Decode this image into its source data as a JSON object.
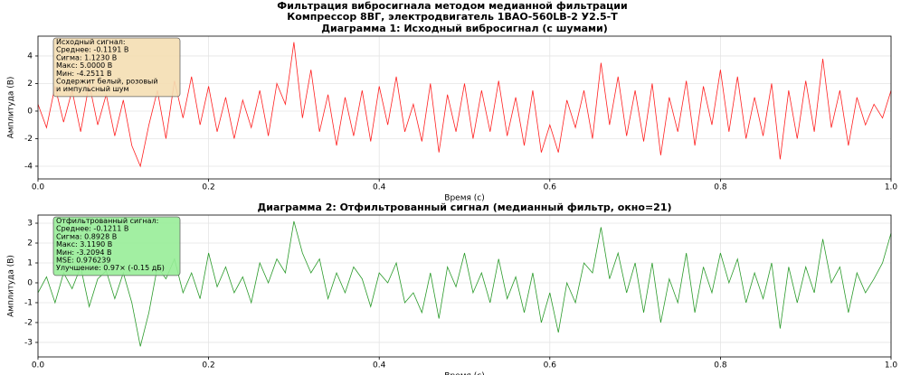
{
  "suptitle": [
    "Фильтрация вибросигнала методом медианной фильтрации",
    "Компрессор 8ВГ, электродвигатель 1ВАО-560LВ-2 У2.5-Т"
  ],
  "chart_data": [
    {
      "type": "line",
      "title": "Диаграмма 1: Исходный вибросигнал (с шумами)",
      "xlabel": "Время (с)",
      "ylabel": "Амплитуда (В)",
      "color": "#ff2020",
      "annotation_bg": "#f5deb3",
      "annotation": [
        "Исходный сигнал:",
        "Среднее: -0.1191 В",
        "Сигма: 1.1230 В",
        "Макс: 5.0000 В",
        "Мин: -4.2511 В",
        "Содержит белый, розовый",
        "и импульсный шум"
      ],
      "xlim": [
        0,
        1
      ],
      "ylim": [
        -4.92,
        5.44
      ],
      "grid": true,
      "xticks": [
        {
          "value": 0,
          "label": "0.0"
        },
        0.2,
        0.4,
        0.6,
        0.8,
        {
          "value": 1,
          "label": "1.0"
        }
      ],
      "yticks": [
        -4,
        -2,
        0,
        2,
        4
      ],
      "x": [
        0,
        0.01,
        0.02,
        0.03,
        0.04,
        0.05,
        0.06,
        0.07,
        0.08,
        0.09,
        0.1,
        0.11,
        0.12,
        0.13,
        0.14,
        0.15,
        0.16,
        0.17,
        0.18,
        0.19,
        0.2,
        0.21,
        0.22,
        0.23,
        0.24,
        0.25,
        0.26,
        0.27,
        0.28,
        0.29,
        0.3,
        0.31,
        0.32,
        0.33,
        0.34,
        0.35,
        0.36,
        0.37,
        0.38,
        0.39,
        0.4,
        0.41,
        0.42,
        0.43,
        0.44,
        0.45,
        0.46,
        0.47,
        0.48,
        0.49,
        0.5,
        0.51,
        0.52,
        0.53,
        0.54,
        0.55,
        0.56,
        0.57,
        0.58,
        0.59,
        0.6,
        0.61,
        0.62,
        0.63,
        0.64,
        0.65,
        0.66,
        0.67,
        0.68,
        0.69,
        0.7,
        0.71,
        0.72,
        0.73,
        0.74,
        0.75,
        0.76,
        0.77,
        0.78,
        0.79,
        0.8,
        0.81,
        0.82,
        0.83,
        0.84,
        0.85,
        0.86,
        0.87,
        0.88,
        0.89,
        0.9,
        0.91,
        0.92,
        0.93,
        0.94,
        0.95,
        0.96,
        0.97,
        0.98,
        0.99,
        1
      ],
      "values": [
        0.5,
        -1.2,
        1.8,
        -0.8,
        1.5,
        -1.5,
        2.0,
        -1.0,
        1.2,
        -1.8,
        0.8,
        -2.5,
        -4.0,
        -1.0,
        1.5,
        -2.0,
        2.2,
        -0.5,
        2.5,
        -1.0,
        1.8,
        -1.5,
        1.0,
        -2.0,
        0.8,
        -1.2,
        1.5,
        -1.8,
        2.0,
        0.5,
        5.0,
        -0.5,
        3.0,
        -1.5,
        1.2,
        -2.5,
        1.0,
        -1.8,
        1.5,
        -2.2,
        1.8,
        -1.0,
        2.5,
        -1.5,
        0.5,
        -2.2,
        2.0,
        -3.0,
        1.2,
        -1.5,
        2.0,
        -2.0,
        1.5,
        -1.5,
        2.2,
        -1.8,
        1.0,
        -2.5,
        1.5,
        -3.0,
        -1.0,
        -3.0,
        0.8,
        -1.2,
        1.5,
        -2.0,
        3.5,
        -1.0,
        2.5,
        -1.8,
        1.5,
        -2.2,
        2.0,
        -3.2,
        1.0,
        -1.5,
        2.2,
        -2.5,
        1.8,
        -1.0,
        3.0,
        -1.5,
        2.5,
        -2.0,
        1.0,
        -1.8,
        2.0,
        -3.5,
        1.5,
        -2.0,
        2.2,
        -1.5,
        3.8,
        -1.2,
        1.5,
        -2.5,
        1.0,
        -1.0,
        0.5,
        -0.5,
        1.5
      ]
    },
    {
      "type": "line",
      "title": "Диаграмма 2: Отфильтрованный сигнал (медианный фильтр, окно=21)",
      "xlabel": "Время (с)",
      "ylabel": "Амплитуда (В)",
      "color": "#2a9a2a",
      "annotation_bg": "#98ee98",
      "annotation": [
        "Отфильтрованный сигнал:",
        "Среднее: -0.1211 В",
        "Сигма: 0.8928 В",
        "Макс: 3.1190 В",
        "Мин: -3.2094 В",
        "MSE: 0.976239",
        "Улучшение: 0.97× (-0.15 дБ)"
      ],
      "xlim": [
        0,
        1
      ],
      "ylim": [
        -3.73,
        3.41
      ],
      "grid": true,
      "xticks": [
        {
          "value": 0,
          "label": "0.0"
        },
        0.2,
        0.4,
        0.6,
        0.8,
        {
          "value": 1,
          "label": "1.0"
        }
      ],
      "yticks": [
        -3,
        -2,
        -1,
        0,
        1,
        2,
        3
      ],
      "x": [
        0,
        0.01,
        0.02,
        0.03,
        0.04,
        0.05,
        0.06,
        0.07,
        0.08,
        0.09,
        0.1,
        0.11,
        0.12,
        0.13,
        0.14,
        0.15,
        0.16,
        0.17,
        0.18,
        0.19,
        0.2,
        0.21,
        0.22,
        0.23,
        0.24,
        0.25,
        0.26,
        0.27,
        0.28,
        0.29,
        0.3,
        0.31,
        0.32,
        0.33,
        0.34,
        0.35,
        0.36,
        0.37,
        0.38,
        0.39,
        0.4,
        0.41,
        0.42,
        0.43,
        0.44,
        0.45,
        0.46,
        0.47,
        0.48,
        0.49,
        0.5,
        0.51,
        0.52,
        0.53,
        0.54,
        0.55,
        0.56,
        0.57,
        0.58,
        0.59,
        0.6,
        0.61,
        0.62,
        0.63,
        0.64,
        0.65,
        0.66,
        0.67,
        0.68,
        0.69,
        0.7,
        0.71,
        0.72,
        0.73,
        0.74,
        0.75,
        0.76,
        0.77,
        0.78,
        0.79,
        0.8,
        0.81,
        0.82,
        0.83,
        0.84,
        0.85,
        0.86,
        0.87,
        0.88,
        0.89,
        0.9,
        0.91,
        0.92,
        0.93,
        0.94,
        0.95,
        0.96,
        0.97,
        0.98,
        0.99,
        1
      ],
      "values": [
        -0.5,
        0.3,
        -1.0,
        0.5,
        -0.3,
        0.8,
        -1.2,
        0.2,
        0.6,
        -0.8,
        0.5,
        -1.0,
        -3.2,
        -1.5,
        0.8,
        0.2,
        1.2,
        -0.5,
        0.5,
        -0.8,
        1.5,
        -0.2,
        0.8,
        -0.5,
        0.3,
        -1.0,
        1.0,
        0.0,
        1.2,
        0.5,
        3.1,
        1.5,
        0.5,
        1.2,
        -0.8,
        0.5,
        -0.5,
        0.8,
        0.2,
        -1.2,
        0.5,
        0.0,
        1.0,
        -1.0,
        -0.5,
        -1.5,
        0.5,
        -1.8,
        0.8,
        -0.2,
        1.5,
        -0.5,
        0.5,
        -1.0,
        1.2,
        -0.8,
        0.3,
        -1.5,
        0.5,
        -2.0,
        -0.5,
        -2.5,
        0.0,
        -1.0,
        1.0,
        0.5,
        2.8,
        0.2,
        1.5,
        -0.5,
        1.0,
        -1.5,
        1.0,
        -2.0,
        0.2,
        -1.0,
        1.5,
        -1.5,
        0.8,
        -0.5,
        1.5,
        0.0,
        1.2,
        -1.0,
        0.5,
        -0.8,
        1.0,
        -2.3,
        0.8,
        -1.0,
        0.8,
        -0.5,
        2.2,
        0.0,
        0.8,
        -1.5,
        0.5,
        -0.5,
        0.2,
        1.0,
        2.5
      ]
    }
  ]
}
